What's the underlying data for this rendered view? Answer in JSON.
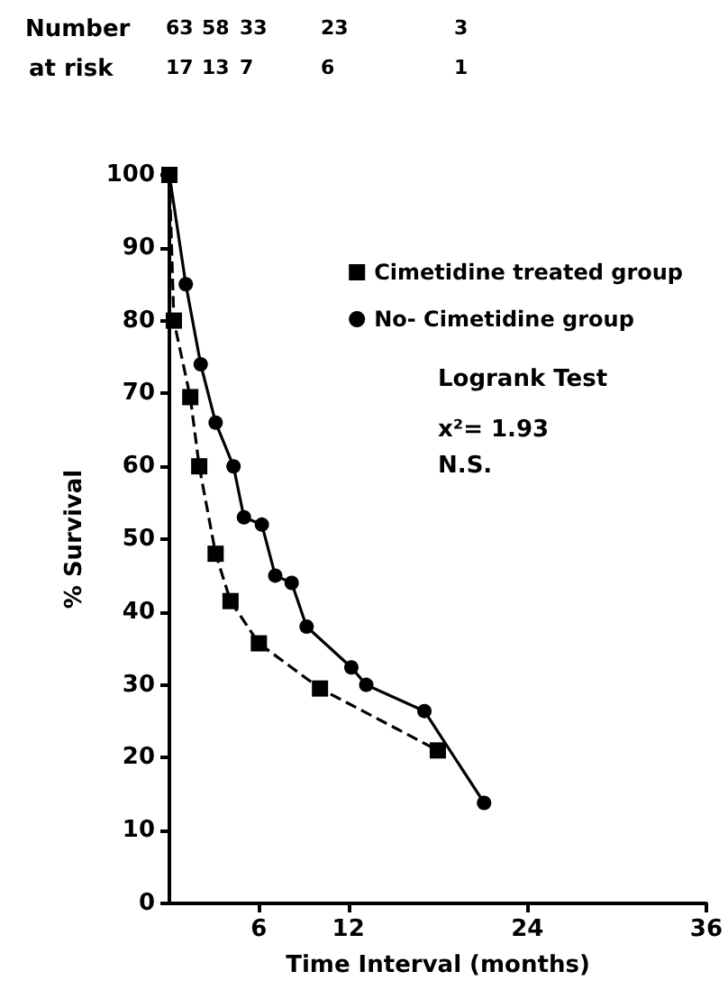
{
  "chart_data": {
    "type": "line",
    "xlabel": "Time Interval (months)",
    "ylabel": "% Survival",
    "xlim": [
      0,
      36
    ],
    "xticks": [
      6,
      12,
      24,
      36
    ],
    "ylim": [
      0,
      100
    ],
    "yticks": [
      0,
      10,
      20,
      30,
      40,
      50,
      60,
      70,
      80,
      90,
      100
    ],
    "grid": false,
    "legend": "top right",
    "series": [
      {
        "name": "Cimetidine treated group",
        "color": "#000000",
        "marker": "square",
        "line_style": "dashed",
        "x": [
          0,
          0.3,
          1.4,
          2,
          3.1,
          4.1,
          6,
          10.1,
          18
        ],
        "values": [
          100,
          80,
          69.5,
          60,
          48,
          41.5,
          35.7,
          29.5,
          21
        ]
      },
      {
        "name": "No- Cimetidine group",
        "color": "#000000",
        "marker": "circle",
        "line_style": "solid",
        "x": [
          0,
          1.1,
          2.1,
          3.1,
          4.3,
          5,
          6.2,
          7.1,
          8.2,
          9.2,
          12.2,
          13.2,
          17.1,
          21.1
        ],
        "values": [
          100,
          85,
          74,
          66,
          60,
          53,
          52,
          45,
          44,
          38,
          32.4,
          30,
          26.4,
          13.8
        ]
      }
    ],
    "annotations": [
      "Number",
      "at risk",
      "63",
      "58",
      "33",
      "23",
      "3",
      "17",
      "13",
      "7",
      "6",
      "1",
      "Logrank Test",
      "x²= 1.93",
      "N.S."
    ]
  }
}
